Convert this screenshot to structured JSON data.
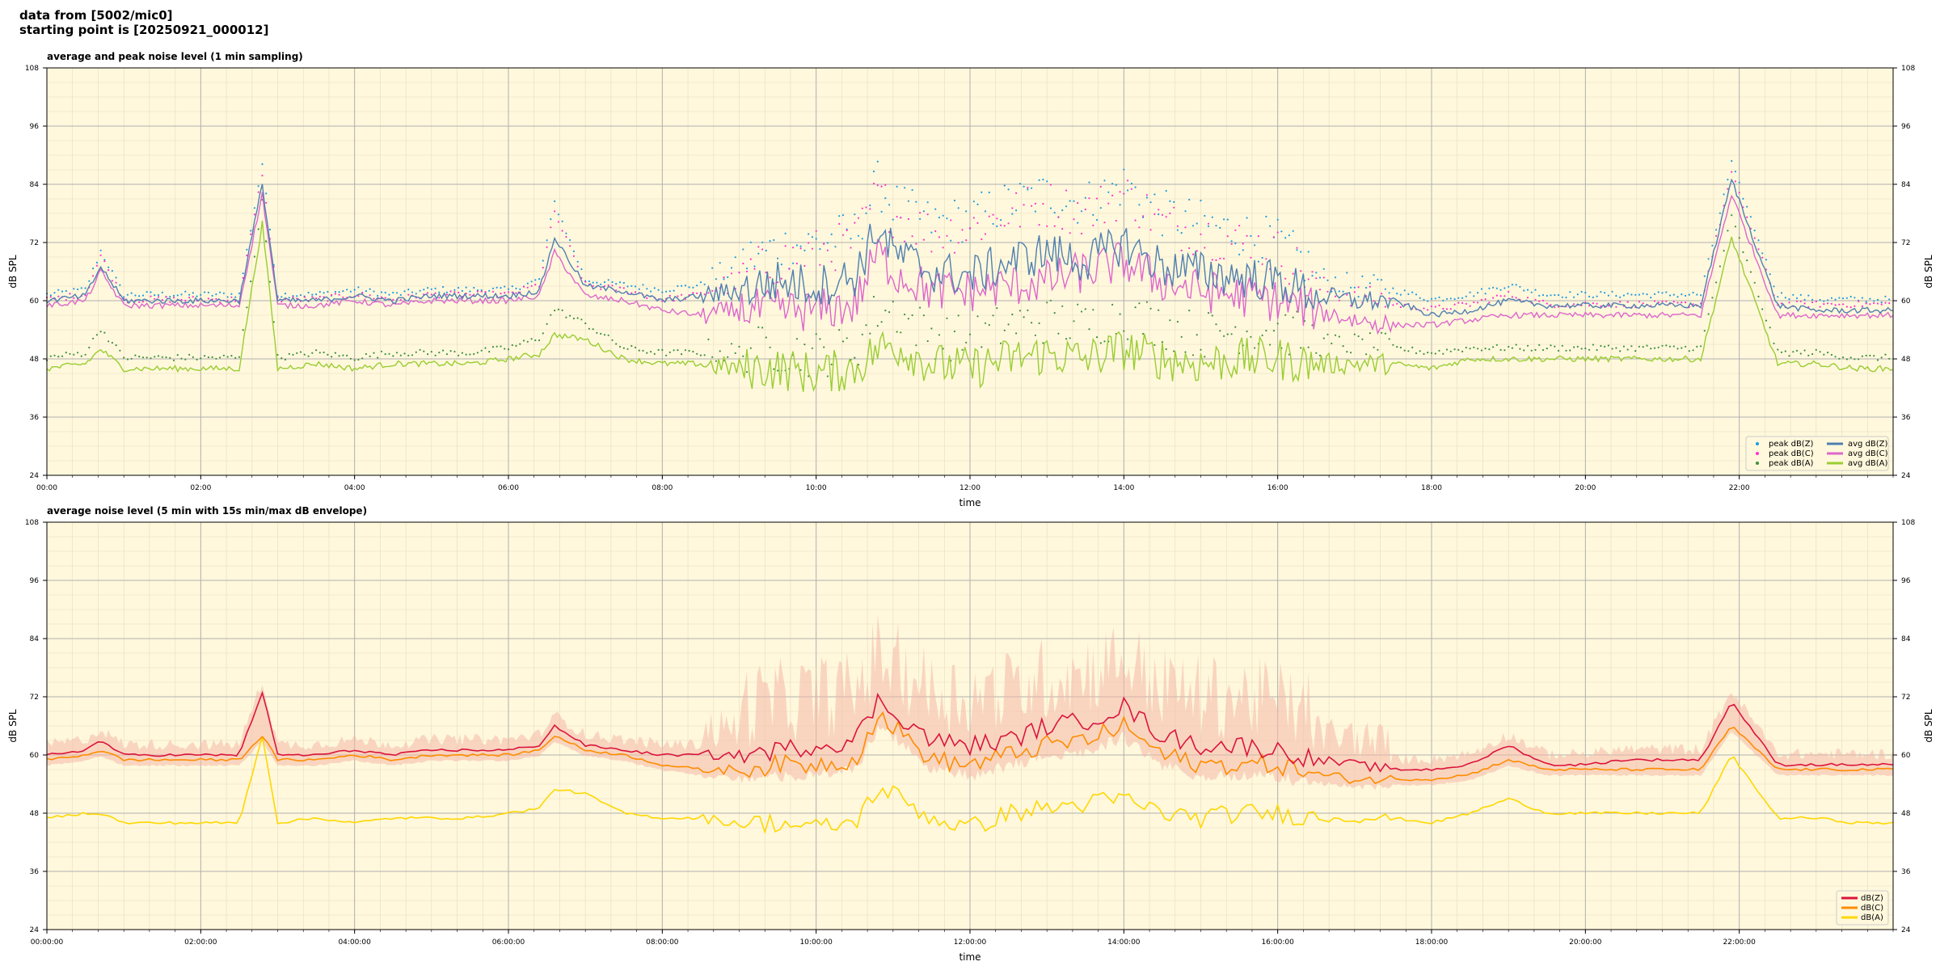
{
  "header": {
    "line1": "data from [5002/mic0]",
    "line2": "starting point is [20250921_000012]"
  },
  "colors": {
    "background": "#fff8dc",
    "zcolor_avg": "#4f7fb0",
    "ccolor_avg": "#dd66cc",
    "acolor_avg": "#9acd32",
    "zcolor_peak": "#1f9be0",
    "ccolor_peak": "#ff33cc",
    "acolor_peak": "#3f8f3f",
    "z2": "#dc143c",
    "c2": "#ff8c00",
    "a2": "#ffd700",
    "envelope": "#f4b8a8"
  },
  "chart_data": [
    {
      "type": "line",
      "title": "average and peak noise level (1 min sampling)",
      "xlabel": "time",
      "ylabel": "dB SPL",
      "ylim": [
        24,
        108
      ],
      "yticks": [
        "24",
        "36",
        "48",
        "60",
        "72",
        "84",
        "96",
        "108"
      ],
      "xlim_hours": [
        0,
        24
      ],
      "xticks": [
        "00:00",
        "02:00",
        "04:00",
        "06:00",
        "08:00",
        "10:00",
        "12:00",
        "14:00",
        "16:00",
        "18:00",
        "20:00",
        "22:00"
      ],
      "grid": true,
      "legend_position": "bottom-right",
      "legend": [
        "peak dB(Z)",
        "peak dB(C)",
        "peak dB(A)",
        "avg dB(Z)",
        "avg dB(C)",
        "avg dB(A)"
      ],
      "hours": [
        0,
        0.5,
        0.7,
        1,
        1.5,
        2,
        2.5,
        2.8,
        3,
        3.5,
        4,
        4.5,
        5,
        5.5,
        6,
        6.4,
        6.6,
        7,
        7.5,
        8,
        8.5,
        9,
        9.5,
        10,
        10.5,
        10.8,
        11,
        11.5,
        12,
        12.5,
        13,
        13.5,
        14,
        14.5,
        15,
        15.5,
        16,
        16.5,
        17,
        17.5,
        18,
        18.5,
        19,
        19.5,
        20,
        20.5,
        21,
        21.5,
        21.9,
        22.5,
        23,
        23.5,
        24
      ],
      "series": [
        {
          "name": "avg dB(Z)",
          "values": [
            60,
            61,
            67,
            60,
            60,
            60,
            60,
            84,
            60,
            60,
            61,
            60,
            61,
            61,
            61,
            62,
            73,
            63,
            62,
            60,
            61,
            62,
            64,
            63,
            65,
            75,
            70,
            66,
            65,
            68,
            70,
            68,
            72,
            67,
            66,
            65,
            64,
            61,
            60,
            60,
            57,
            58,
            60,
            59,
            59,
            59,
            59,
            59,
            85,
            59,
            58,
            58,
            58
          ]
        },
        {
          "name": "avg dB(C)",
          "values": [
            59,
            60,
            66,
            59,
            59,
            59,
            59,
            82,
            59,
            59,
            60,
            59,
            60,
            60,
            60,
            61,
            70,
            61,
            60,
            58,
            57,
            58,
            58,
            58,
            59,
            70,
            66,
            62,
            62,
            63,
            64,
            66,
            68,
            64,
            62,
            61,
            60,
            58,
            56,
            55,
            55,
            56,
            57,
            57,
            57,
            57,
            57,
            57,
            82,
            57,
            57,
            57,
            57
          ]
        },
        {
          "name": "avg dB(A)",
          "values": [
            46,
            47,
            50,
            46,
            46,
            46,
            46,
            76,
            46,
            47,
            46,
            47,
            47,
            47,
            48,
            49,
            53,
            52,
            48,
            47,
            47,
            46,
            46,
            45,
            46,
            50,
            51,
            47,
            46,
            48,
            49,
            48,
            50,
            48,
            47,
            48,
            48,
            47,
            47,
            47,
            46,
            48,
            48,
            48,
            48,
            48,
            48,
            48,
            73,
            47,
            47,
            46,
            46
          ]
        },
        {
          "name": "peak dB(Z)",
          "values": [
            61,
            62,
            70,
            61,
            61,
            61,
            61,
            88,
            61,
            61,
            62,
            61,
            62,
            62,
            62,
            64,
            80,
            64,
            63,
            62,
            63,
            66,
            69,
            70,
            72,
            82,
            78,
            74,
            75,
            78,
            80,
            78,
            82,
            76,
            74,
            72,
            70,
            64,
            62,
            62,
            60,
            61,
            63,
            61,
            61,
            61,
            61,
            61,
            88,
            61,
            60,
            60,
            60
          ]
        },
        {
          "name": "peak dB(C)",
          "values": [
            60,
            61,
            69,
            60,
            60,
            60,
            60,
            86,
            60,
            60,
            61,
            60,
            61,
            61,
            61,
            63,
            78,
            63,
            62,
            60,
            61,
            63,
            66,
            68,
            70,
            80,
            76,
            72,
            73,
            76,
            78,
            76,
            80,
            74,
            72,
            70,
            68,
            62,
            60,
            59,
            58,
            59,
            61,
            59,
            59,
            59,
            59,
            59,
            86,
            59,
            59,
            59,
            59
          ]
        },
        {
          "name": "peak dB(A)",
          "values": [
            48,
            49,
            54,
            48,
            48,
            48,
            48,
            80,
            48,
            49,
            48,
            49,
            49,
            49,
            50,
            52,
            58,
            55,
            50,
            49,
            49,
            48,
            48,
            47,
            48,
            56,
            56,
            51,
            50,
            53,
            54,
            53,
            55,
            53,
            51,
            52,
            52,
            50,
            50,
            50,
            49,
            50,
            50,
            50,
            50,
            50,
            50,
            50,
            77,
            49,
            49,
            48,
            48
          ]
        }
      ]
    },
    {
      "type": "line",
      "title": "average noise level (5 min with 15s min/max dB envelope)",
      "xlabel": "time",
      "ylabel": "dB SPL",
      "ylim": [
        24,
        108
      ],
      "yticks": [
        "24",
        "36",
        "48",
        "60",
        "72",
        "84",
        "96",
        "108"
      ],
      "xlim_hours": [
        0,
        24
      ],
      "xticks": [
        "00:00:00",
        "02:00:00",
        "04:00:00",
        "06:00:00",
        "08:00:00",
        "10:00:00",
        "12:00:00",
        "14:00:00",
        "16:00:00",
        "18:00:00",
        "20:00:00",
        "22:00:00"
      ],
      "grid": true,
      "legend_position": "bottom-right",
      "legend": [
        "dB(Z)",
        "dB(C)",
        "dB(A)"
      ],
      "hours": [
        0,
        0.5,
        0.7,
        1,
        1.5,
        2,
        2.5,
        2.8,
        3,
        3.5,
        4,
        4.5,
        5,
        5.5,
        6,
        6.4,
        6.6,
        7,
        7.5,
        8,
        8.5,
        9,
        9.5,
        10,
        10.5,
        10.8,
        11,
        11.5,
        12,
        12.5,
        13,
        13.5,
        14,
        14.5,
        15,
        15.5,
        16,
        16.5,
        17,
        17.5,
        18,
        18.5,
        19,
        19.5,
        20,
        20.5,
        21,
        21.5,
        21.9,
        22.5,
        23,
        23.5,
        24
      ],
      "series": [
        {
          "name": "dB(Z)",
          "values": [
            60,
            61,
            63,
            60,
            60,
            60,
            60,
            73,
            60,
            60,
            61,
            60,
            61,
            61,
            61,
            62,
            66,
            62,
            61,
            60,
            60,
            60,
            61,
            62,
            63,
            71,
            69,
            63,
            62,
            63,
            66,
            67,
            70,
            64,
            62,
            62,
            61,
            59,
            58,
            57,
            57,
            58,
            62,
            58,
            58,
            59,
            59,
            59,
            71,
            58,
            58,
            58,
            58
          ]
        },
        {
          "name": "dB(C)",
          "values": [
            59,
            60,
            61,
            59,
            59,
            59,
            59,
            64,
            59,
            59,
            60,
            59,
            60,
            60,
            60,
            61,
            64,
            61,
            60,
            58,
            57,
            57,
            58,
            58,
            59,
            68,
            66,
            59,
            58,
            60,
            62,
            63,
            66,
            60,
            58,
            58,
            58,
            56,
            55,
            55,
            55,
            56,
            59,
            57,
            57,
            57,
            57,
            57,
            66,
            57,
            57,
            57,
            57
          ]
        },
        {
          "name": "dB(A)",
          "values": [
            47,
            48,
            48,
            46,
            46,
            46,
            46,
            64,
            46,
            47,
            46,
            47,
            47,
            47,
            48,
            49,
            53,
            52,
            48,
            47,
            47,
            46,
            46,
            45,
            46,
            53,
            52,
            47,
            45,
            48,
            49,
            50,
            51,
            48,
            47,
            48,
            48,
            47,
            47,
            47,
            46,
            48,
            51,
            48,
            48,
            48,
            48,
            48,
            60,
            47,
            47,
            46,
            46
          ]
        }
      ]
    }
  ]
}
